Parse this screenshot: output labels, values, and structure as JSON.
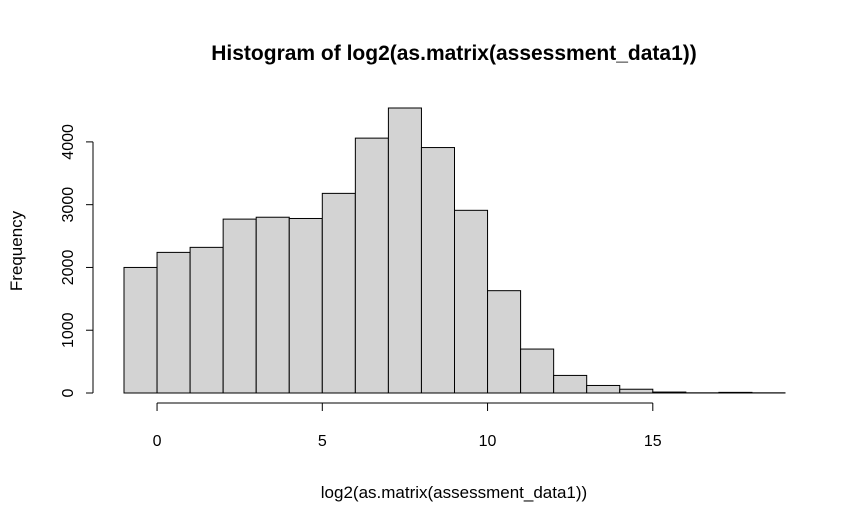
{
  "chart_data": {
    "type": "bar",
    "title": "Histogram of log2(as.matrix(assessment_data1))",
    "xlabel": "log2(as.matrix(assessment_data1))",
    "ylabel": "Frequency",
    "bin_width": 1,
    "bins": [
      {
        "x0": -1,
        "x1": 0,
        "count": 2000
      },
      {
        "x0": 0,
        "x1": 1,
        "count": 2240
      },
      {
        "x0": 1,
        "x1": 2,
        "count": 2320
      },
      {
        "x0": 2,
        "x1": 3,
        "count": 2770
      },
      {
        "x0": 3,
        "x1": 4,
        "count": 2800
      },
      {
        "x0": 4,
        "x1": 5,
        "count": 2780
      },
      {
        "x0": 5,
        "x1": 6,
        "count": 3180
      },
      {
        "x0": 6,
        "x1": 7,
        "count": 4060
      },
      {
        "x0": 7,
        "x1": 8,
        "count": 4540
      },
      {
        "x0": 8,
        "x1": 9,
        "count": 3910
      },
      {
        "x0": 9,
        "x1": 10,
        "count": 2910
      },
      {
        "x0": 10,
        "x1": 11,
        "count": 1630
      },
      {
        "x0": 11,
        "x1": 12,
        "count": 700
      },
      {
        "x0": 12,
        "x1": 13,
        "count": 280
      },
      {
        "x0": 13,
        "x1": 14,
        "count": 120
      },
      {
        "x0": 14,
        "x1": 15,
        "count": 60
      },
      {
        "x0": 15,
        "x1": 16,
        "count": 15
      },
      {
        "x0": 16,
        "x1": 17,
        "count": 3
      },
      {
        "x0": 17,
        "x1": 18,
        "count": 10
      },
      {
        "x0": 18,
        "x1": 19,
        "count": 3
      }
    ],
    "xlim": [
      -1,
      19
    ],
    "ylim": [
      0,
      4540
    ],
    "x_ticks": [
      0,
      5,
      10,
      15
    ],
    "x_tick_labels": [
      "0",
      "5",
      "10",
      "15"
    ],
    "y_ticks": [
      0,
      1000,
      2000,
      3000,
      4000
    ],
    "y_tick_labels": [
      "0",
      "1000",
      "2000",
      "3000",
      "4000"
    ],
    "bar_fill": "#d3d3d3",
    "bar_stroke": "#000000",
    "grid": false,
    "legend": "none"
  }
}
